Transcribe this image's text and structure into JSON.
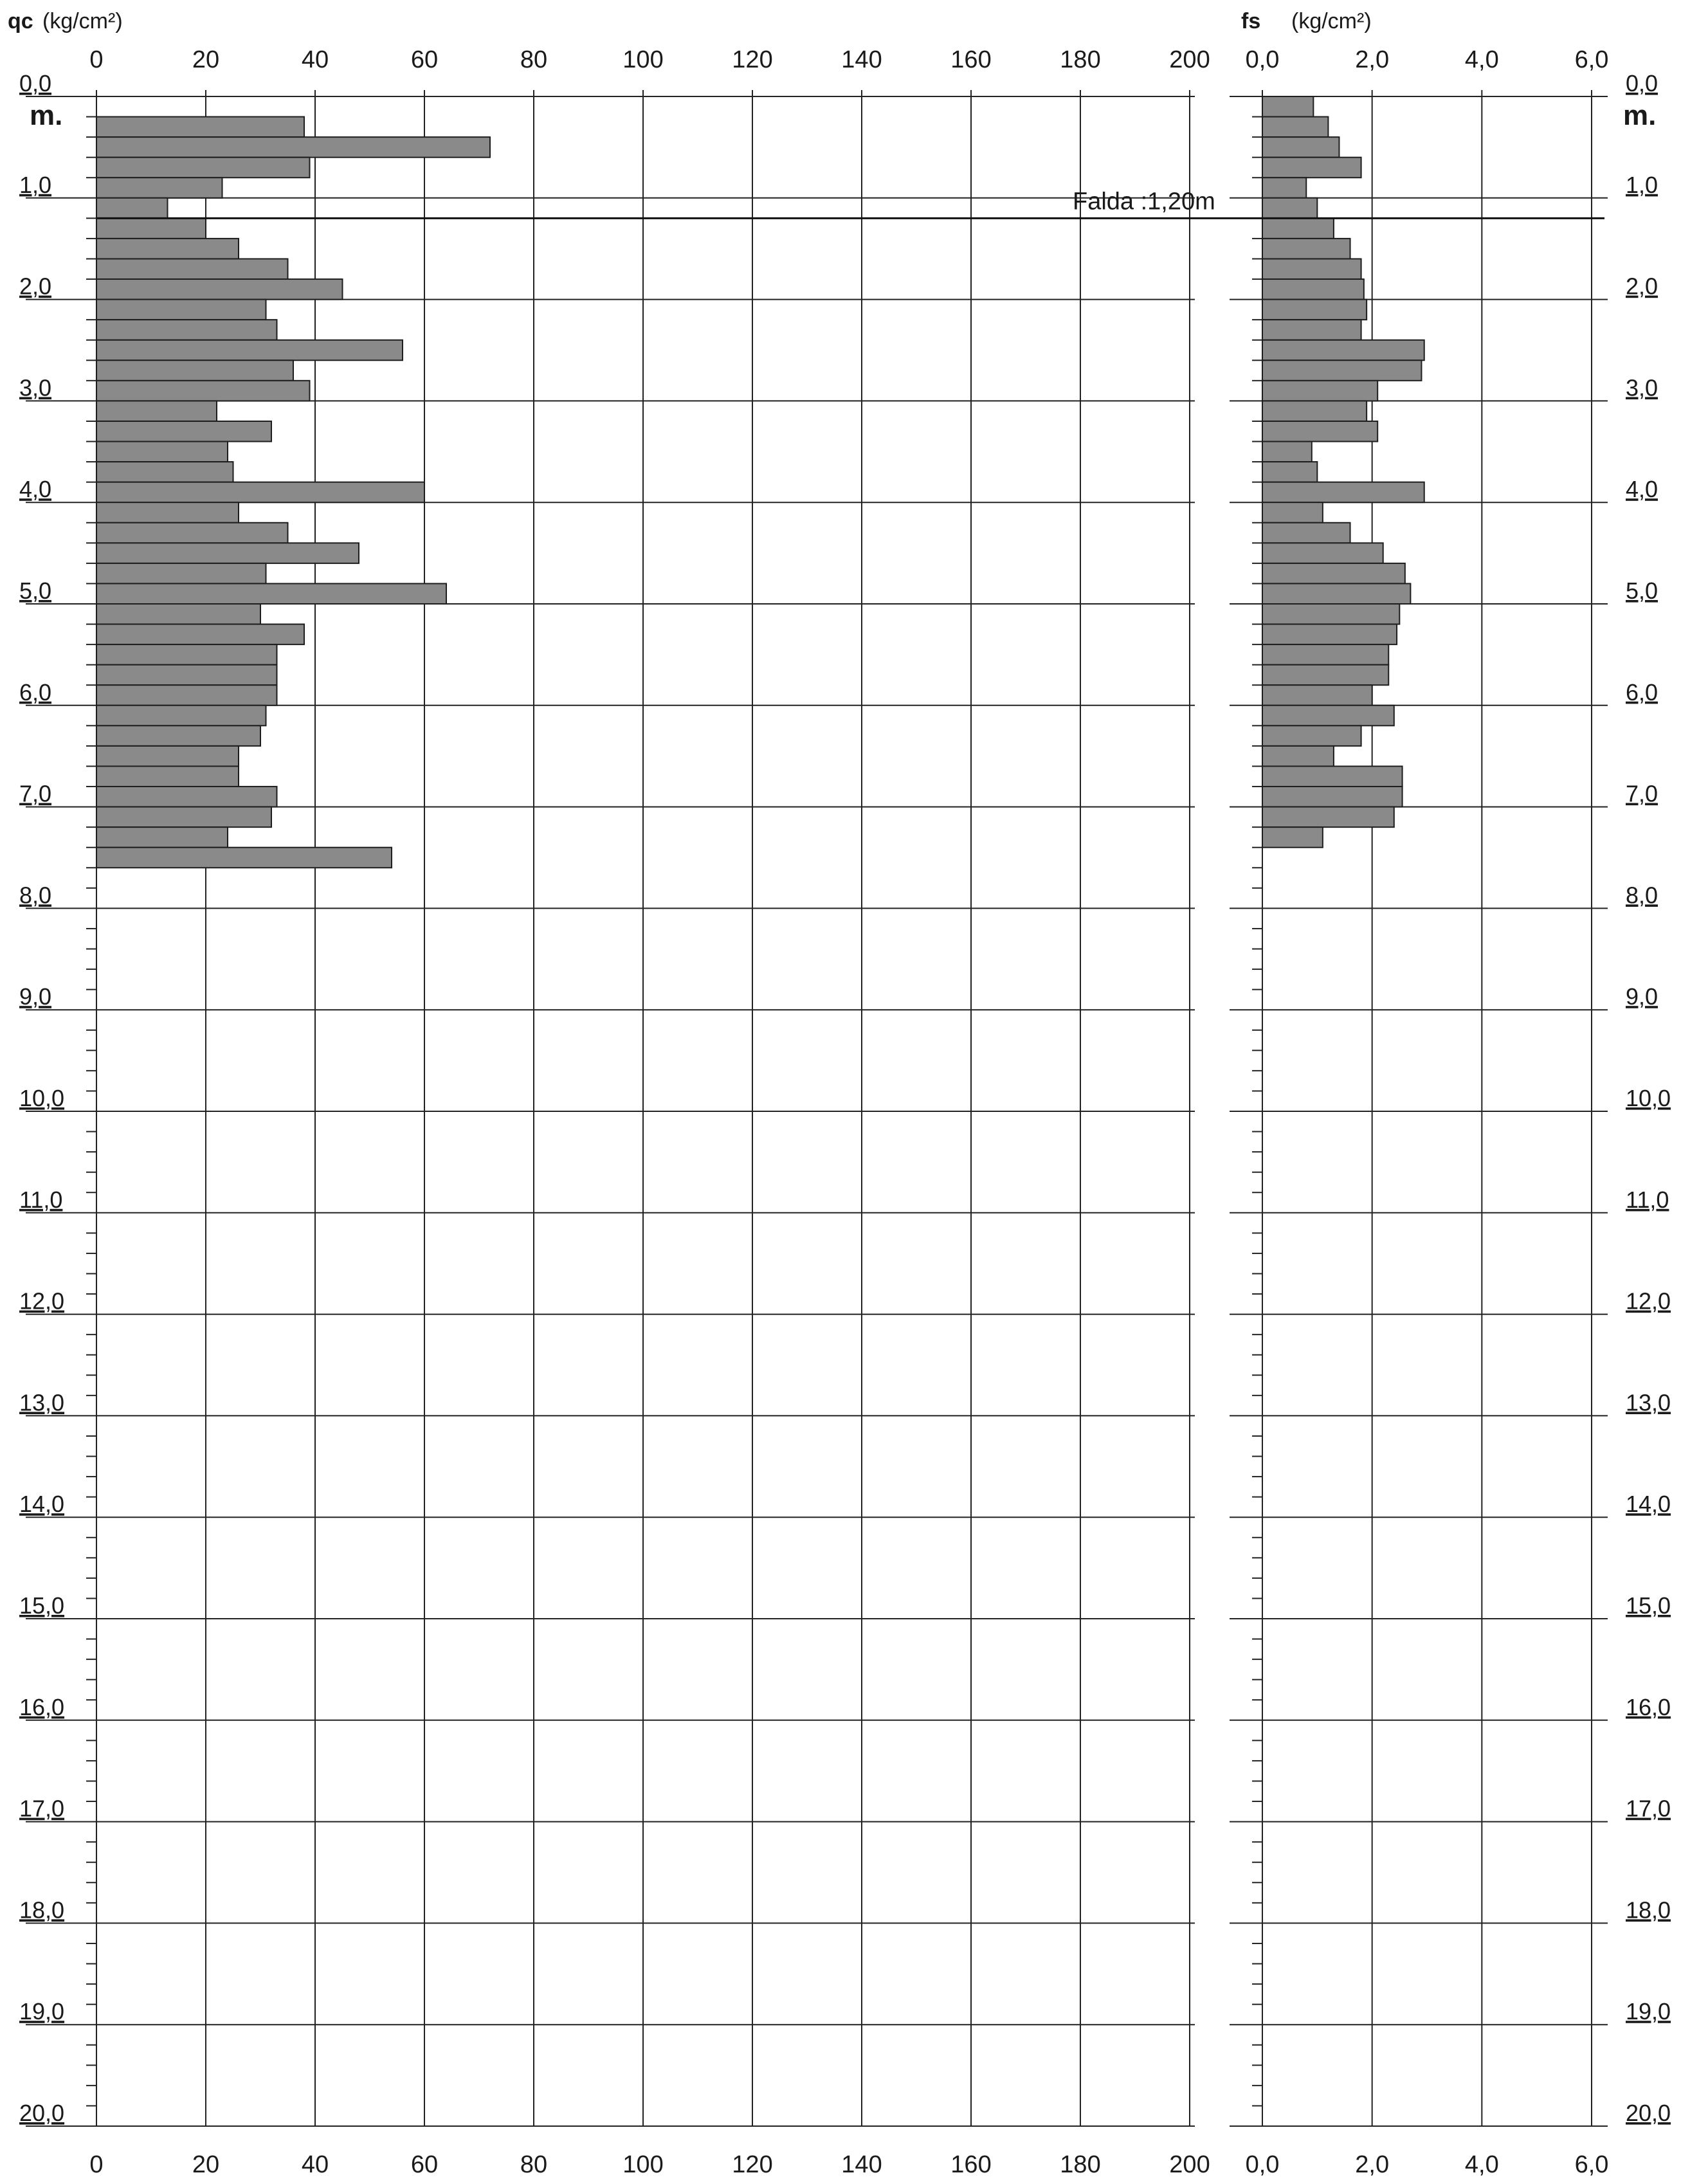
{
  "chart_data": [
    {
      "type": "bar",
      "orientation": "horizontal",
      "xlabel_symbol": "qc",
      "xlabel_unit": "(kg/cm²)",
      "ylabel": "m.",
      "xlim": [
        0,
        200
      ],
      "ylim": [
        0,
        20
      ],
      "x_ticks": [
        "0",
        "20",
        "40",
        "60",
        "80",
        "100",
        "120",
        "140",
        "160",
        "180",
        "200"
      ],
      "depth_ticks": [
        "0,0",
        "1,0",
        "2,0",
        "3,0",
        "4,0",
        "5,0",
        "6,0",
        "7,0",
        "8,0",
        "9,0",
        "10,0",
        "11,0",
        "12,0",
        "13,0",
        "14,0",
        "15,0",
        "16,0",
        "17,0",
        "18,0",
        "19,0",
        "20,0"
      ],
      "depth_step": 0.2,
      "depth_start": 0.2,
      "values": [
        38,
        72,
        39,
        23,
        13,
        20,
        26,
        35,
        45,
        31,
        33,
        56,
        36,
        39,
        22,
        32,
        24,
        25,
        60,
        26,
        35,
        48,
        31,
        64,
        30,
        38,
        33,
        33,
        33,
        31,
        30,
        26,
        26,
        33,
        32,
        24,
        54
      ],
      "grid": true
    },
    {
      "type": "bar",
      "orientation": "horizontal",
      "xlabel_symbol": "fs",
      "xlabel_unit": "(kg/cm²)",
      "ylabel": "m.",
      "xlim": [
        0,
        6
      ],
      "ylim": [
        0,
        20
      ],
      "x_ticks": [
        "0,0",
        "2,0",
        "4,0",
        "6,0"
      ],
      "depth_ticks": [
        "0,0",
        "1,0",
        "2,0",
        "3,0",
        "4,0",
        "5,0",
        "6,0",
        "7,0",
        "8,0",
        "9,0",
        "10,0",
        "11,0",
        "12,0",
        "13,0",
        "14,0",
        "15,0",
        "16,0",
        "17,0",
        "18,0",
        "19,0",
        "20,0"
      ],
      "depth_step": 0.2,
      "depth_start": 0.0,
      "values": [
        0.93,
        1.2,
        1.4,
        1.8,
        0.8,
        1.0,
        1.3,
        1.6,
        1.8,
        1.85,
        1.9,
        1.8,
        2.95,
        2.9,
        2.1,
        1.9,
        2.1,
        0.9,
        1.0,
        2.95,
        1.1,
        1.6,
        2.2,
        2.6,
        2.7,
        2.5,
        2.45,
        2.3,
        2.3,
        2.0,
        2.4,
        1.8,
        1.3,
        2.55,
        2.55,
        2.4,
        1.1
      ],
      "grid": true
    }
  ],
  "annotation": {
    "text": "Falda :1,20m",
    "depth": 1.2
  }
}
